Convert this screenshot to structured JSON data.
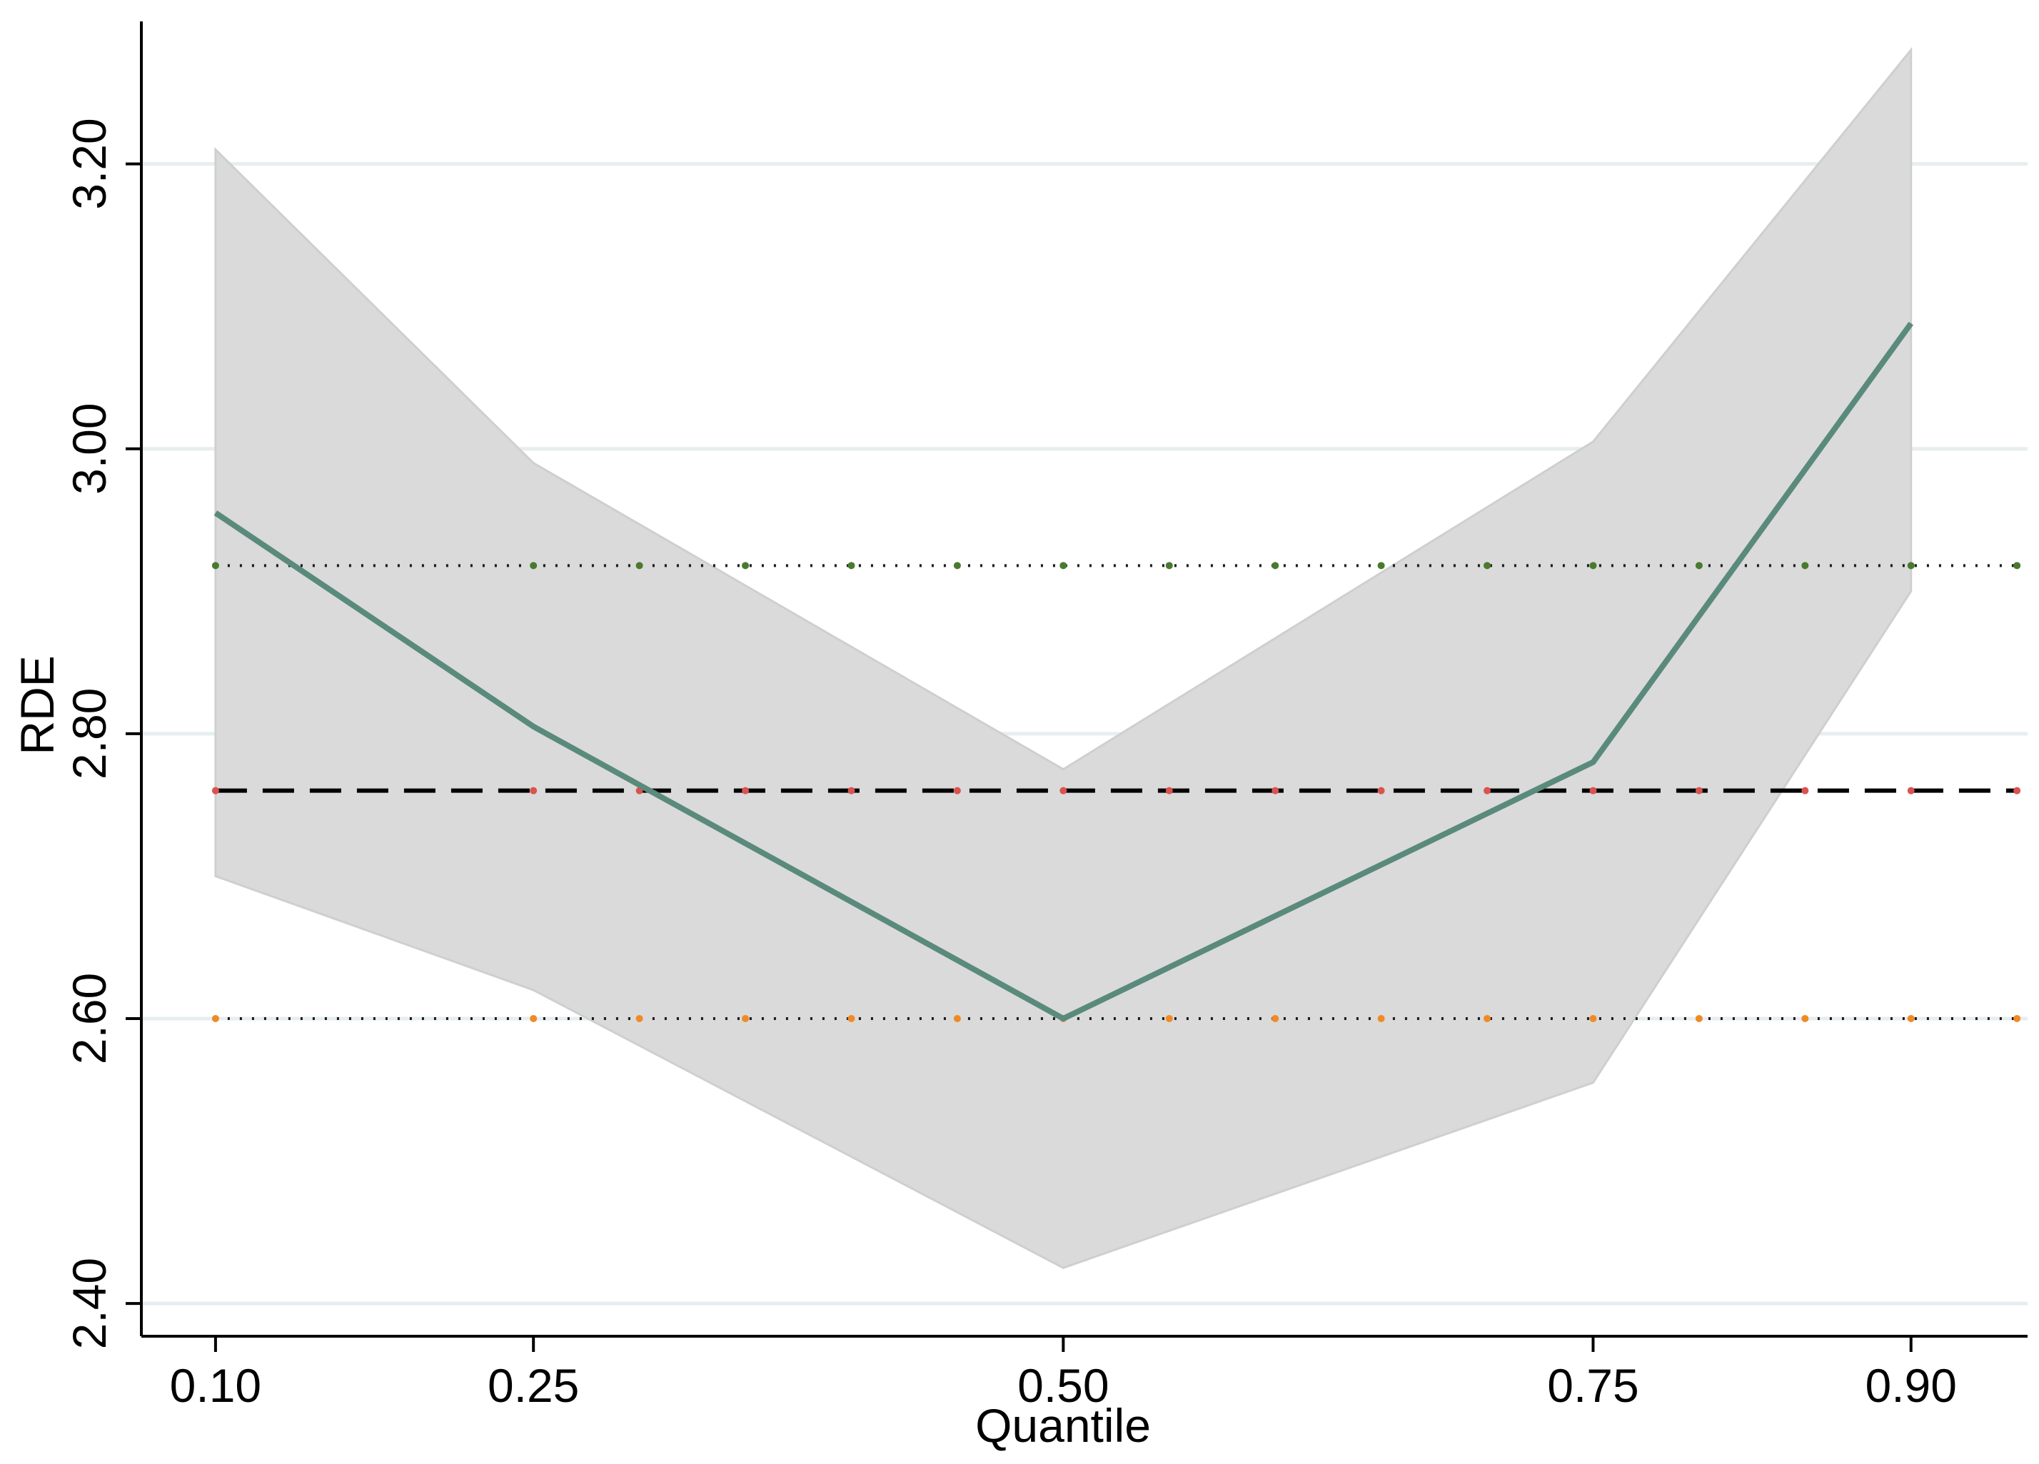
{
  "chart_data": {
    "type": "line",
    "xlabel": "Quantile",
    "ylabel": "RDE",
    "xlim": [
      0.065,
      0.955
    ],
    "ylim": [
      2.377,
      3.3
    ],
    "x_ticks": [
      0.1,
      0.25,
      0.5,
      0.75,
      0.9
    ],
    "x_tick_labels": [
      "0.10",
      "0.25",
      "0.50",
      "0.75",
      "0.90"
    ],
    "y_ticks": [
      2.4,
      2.6,
      2.8,
      3.0,
      3.2
    ],
    "y_tick_labels": [
      "2.40",
      "2.60",
      "2.80",
      "3.00",
      "3.20"
    ],
    "grid": "horizontal",
    "legend": "none",
    "quantile_estimate": {
      "x": [
        0.1,
        0.25,
        0.5,
        0.75,
        0.9
      ],
      "y": [
        2.955,
        2.805,
        2.6,
        2.78,
        3.088
      ]
    },
    "confidence_band": {
      "x": [
        0.1,
        0.25,
        0.5,
        0.75,
        0.9
      ],
      "upper": [
        3.21,
        2.99,
        2.775,
        3.005,
        3.28
      ],
      "lower": [
        2.7,
        2.62,
        2.425,
        2.555,
        2.9
      ]
    },
    "ols_estimate": 2.76,
    "ols_ci_upper": 2.918,
    "ols_ci_lower": 2.6,
    "marker_x": [
      0.1,
      0.25,
      0.3,
      0.35,
      0.4,
      0.45,
      0.5,
      0.55,
      0.6,
      0.65,
      0.7,
      0.75,
      0.8,
      0.85,
      0.9,
      0.95
    ],
    "colors": {
      "quantile_line": "#5a8a7c",
      "band": "#dadada",
      "band_edge": "#cfcfcf",
      "ols_line": "#000000",
      "ols_markers": "#d9534f",
      "upper_markers": "#4a7a2e",
      "lower_markers": "#f08a24",
      "grid": "#e6eef0"
    }
  }
}
